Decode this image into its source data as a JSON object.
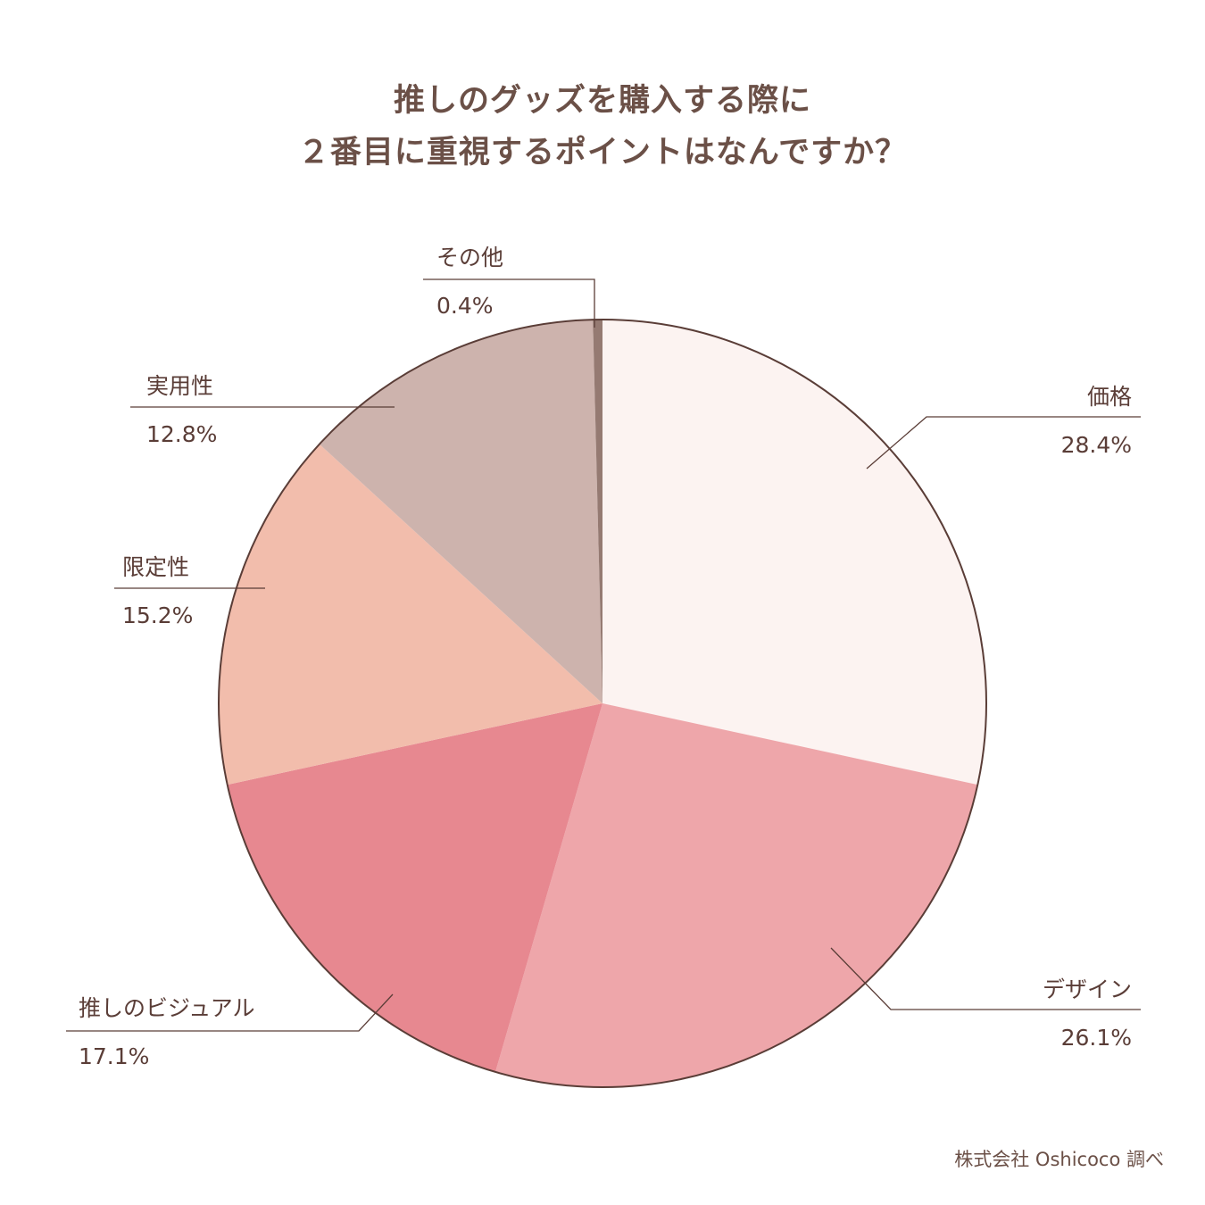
{
  "chart_data": {
    "type": "pie",
    "title_lines": [
      "推しのグッズを購入する際に",
      "２番目に重視するポイントはなんですか？"
    ],
    "slices": [
      {
        "label": "価格",
        "value": 28.4,
        "display": "28.4%",
        "color": "#fcf3f1"
      },
      {
        "label": "デザイン",
        "value": 26.1,
        "display": "26.1%",
        "color": "#eea6aa"
      },
      {
        "label": "推しのビジュアル",
        "value": 17.1,
        "display": "17.1%",
        "color": "#e78890"
      },
      {
        "label": "限定性",
        "value": 15.2,
        "display": "15.2%",
        "color": "#f2bdac"
      },
      {
        "label": "実用性",
        "value": 12.8,
        "display": "12.8%",
        "color": "#cdb3ad"
      },
      {
        "label": "その他",
        "value": 0.4,
        "display": "0.4%",
        "color": "#957a72"
      }
    ],
    "start": "12 o'clock",
    "direction": "clockwise",
    "legend": "none"
  },
  "source": "株式会社 Oshicoco 調べ"
}
